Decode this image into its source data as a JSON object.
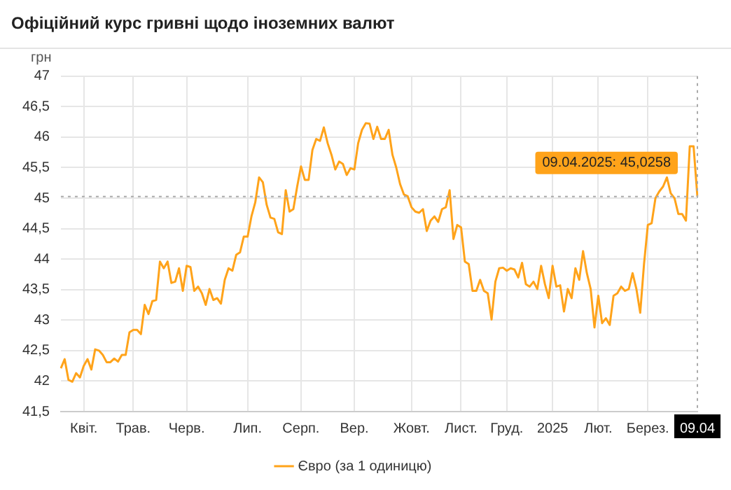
{
  "chart_data": {
    "type": "line",
    "title": "Офіційний курс гривні щодо іноземних валют",
    "ylabel": "грн",
    "categories": [
      null,
      null,
      null,
      null,
      null,
      null,
      "Квіт.",
      null,
      null,
      null,
      null,
      null,
      null,
      null,
      null,
      null,
      null,
      null,
      null,
      "Трав.",
      null,
      null,
      null,
      null,
      null,
      null,
      null,
      null,
      null,
      null,
      null,
      null,
      null,
      "Черв.",
      null,
      null,
      null,
      null,
      null,
      null,
      null,
      null,
      null,
      null,
      null,
      null,
      null,
      null,
      null,
      "Лип.",
      null,
      null,
      null,
      null,
      null,
      null,
      null,
      null,
      null,
      null,
      null,
      null,
      null,
      "Серп.",
      null,
      null,
      null,
      null,
      null,
      null,
      null,
      null,
      null,
      null,
      null,
      null,
      null,
      "Вер.",
      null,
      null,
      null,
      null,
      null,
      null,
      null,
      null,
      null,
      null,
      null,
      null,
      null,
      null,
      "Жовт.",
      null,
      null,
      null,
      null,
      null,
      null,
      null,
      null,
      null,
      null,
      null,
      null,
      "Лист.",
      null,
      null,
      null,
      null,
      null,
      null,
      null,
      null,
      null,
      null,
      null,
      "Груд.",
      null,
      null,
      null,
      null,
      null,
      null,
      null,
      null,
      null,
      null,
      null,
      "2025",
      null,
      null,
      null,
      null,
      null,
      null,
      null,
      null,
      null,
      null,
      null,
      "Лют.",
      null,
      null,
      null,
      null,
      null,
      null,
      null,
      null,
      null,
      null,
      null,
      null,
      "Берез.",
      null,
      null,
      null,
      null,
      null,
      null,
      null,
      null,
      null,
      null,
      null,
      null,
      "09.04"
    ],
    "series": [
      {
        "name": "Євро (за 1 одиницю)",
        "color": "#ffa31a",
        "values": [
          42.21,
          42.36,
          42.02,
          41.99,
          42.13,
          42.06,
          42.25,
          42.36,
          42.19,
          42.52,
          42.5,
          42.43,
          42.31,
          42.31,
          42.37,
          42.32,
          42.43,
          42.43,
          42.8,
          42.84,
          42.84,
          42.77,
          43.25,
          43.1,
          43.31,
          43.33,
          43.96,
          43.85,
          43.96,
          43.61,
          43.63,
          43.85,
          43.48,
          43.89,
          43.87,
          43.48,
          43.55,
          43.44,
          43.25,
          43.51,
          43.33,
          43.36,
          43.27,
          43.66,
          43.85,
          43.81,
          44.07,
          44.11,
          44.37,
          44.37,
          44.7,
          44.93,
          45.34,
          45.26,
          44.89,
          44.68,
          44.66,
          44.44,
          44.41,
          45.13,
          44.78,
          44.82,
          45.19,
          45.52,
          45.3,
          45.3,
          45.79,
          45.97,
          45.94,
          46.16,
          45.9,
          45.71,
          45.47,
          45.6,
          45.56,
          45.38,
          45.49,
          45.47,
          45.9,
          46.12,
          46.23,
          46.22,
          45.97,
          46.17,
          45.97,
          45.97,
          46.12,
          45.71,
          45.5,
          45.23,
          45.06,
          45.03,
          44.85,
          44.78,
          44.76,
          44.82,
          44.46,
          44.63,
          44.7,
          44.61,
          44.82,
          44.85,
          45.13,
          44.33,
          44.56,
          44.52,
          43.96,
          43.92,
          43.48,
          43.48,
          43.66,
          43.48,
          43.44,
          43.01,
          43.63,
          43.85,
          43.86,
          43.81,
          43.85,
          43.83,
          43.7,
          43.94,
          43.59,
          43.55,
          43.63,
          43.51,
          43.89,
          43.59,
          43.36,
          43.89,
          43.55,
          43.57,
          43.14,
          43.51,
          43.36,
          43.85,
          43.66,
          44.13,
          43.77,
          43.51,
          42.88,
          43.4,
          42.95,
          43.03,
          42.92,
          43.4,
          43.44,
          43.55,
          43.48,
          43.51,
          43.77,
          43.51,
          43.12,
          43.92,
          44.56,
          44.59,
          45.0,
          45.11,
          45.19,
          45.34,
          45.08,
          45.0,
          44.74,
          44.74,
          44.63,
          45.85,
          45.85,
          45.0258
        ]
      }
    ],
    "ylim": [
      41.5,
      47
    ],
    "yticks": [
      {
        "value": 41.5,
        "label": "41,5"
      },
      42,
      {
        "value": 42.5,
        "label": "42,5"
      },
      43,
      {
        "value": 43.5,
        "label": "43,5"
      },
      44,
      {
        "value": 44.5,
        "label": "44,5"
      },
      45,
      {
        "value": 45.5,
        "label": "45,5"
      },
      46,
      {
        "value": 46.5,
        "label": "46,5"
      },
      47
    ],
    "ref_lines": [
      {
        "axis": "y",
        "value": 45.0258,
        "line_style": "dotted"
      },
      {
        "axis": "x",
        "value": "09.04",
        "line_style": "dotted"
      }
    ],
    "annotations": [
      {
        "text": "09.04.2025: 45,0258",
        "x": "09.04",
        "y": 45.0258
      }
    ],
    "grid": true,
    "legend": "bottom",
    "marker": "none",
    "line_style": "solid"
  }
}
